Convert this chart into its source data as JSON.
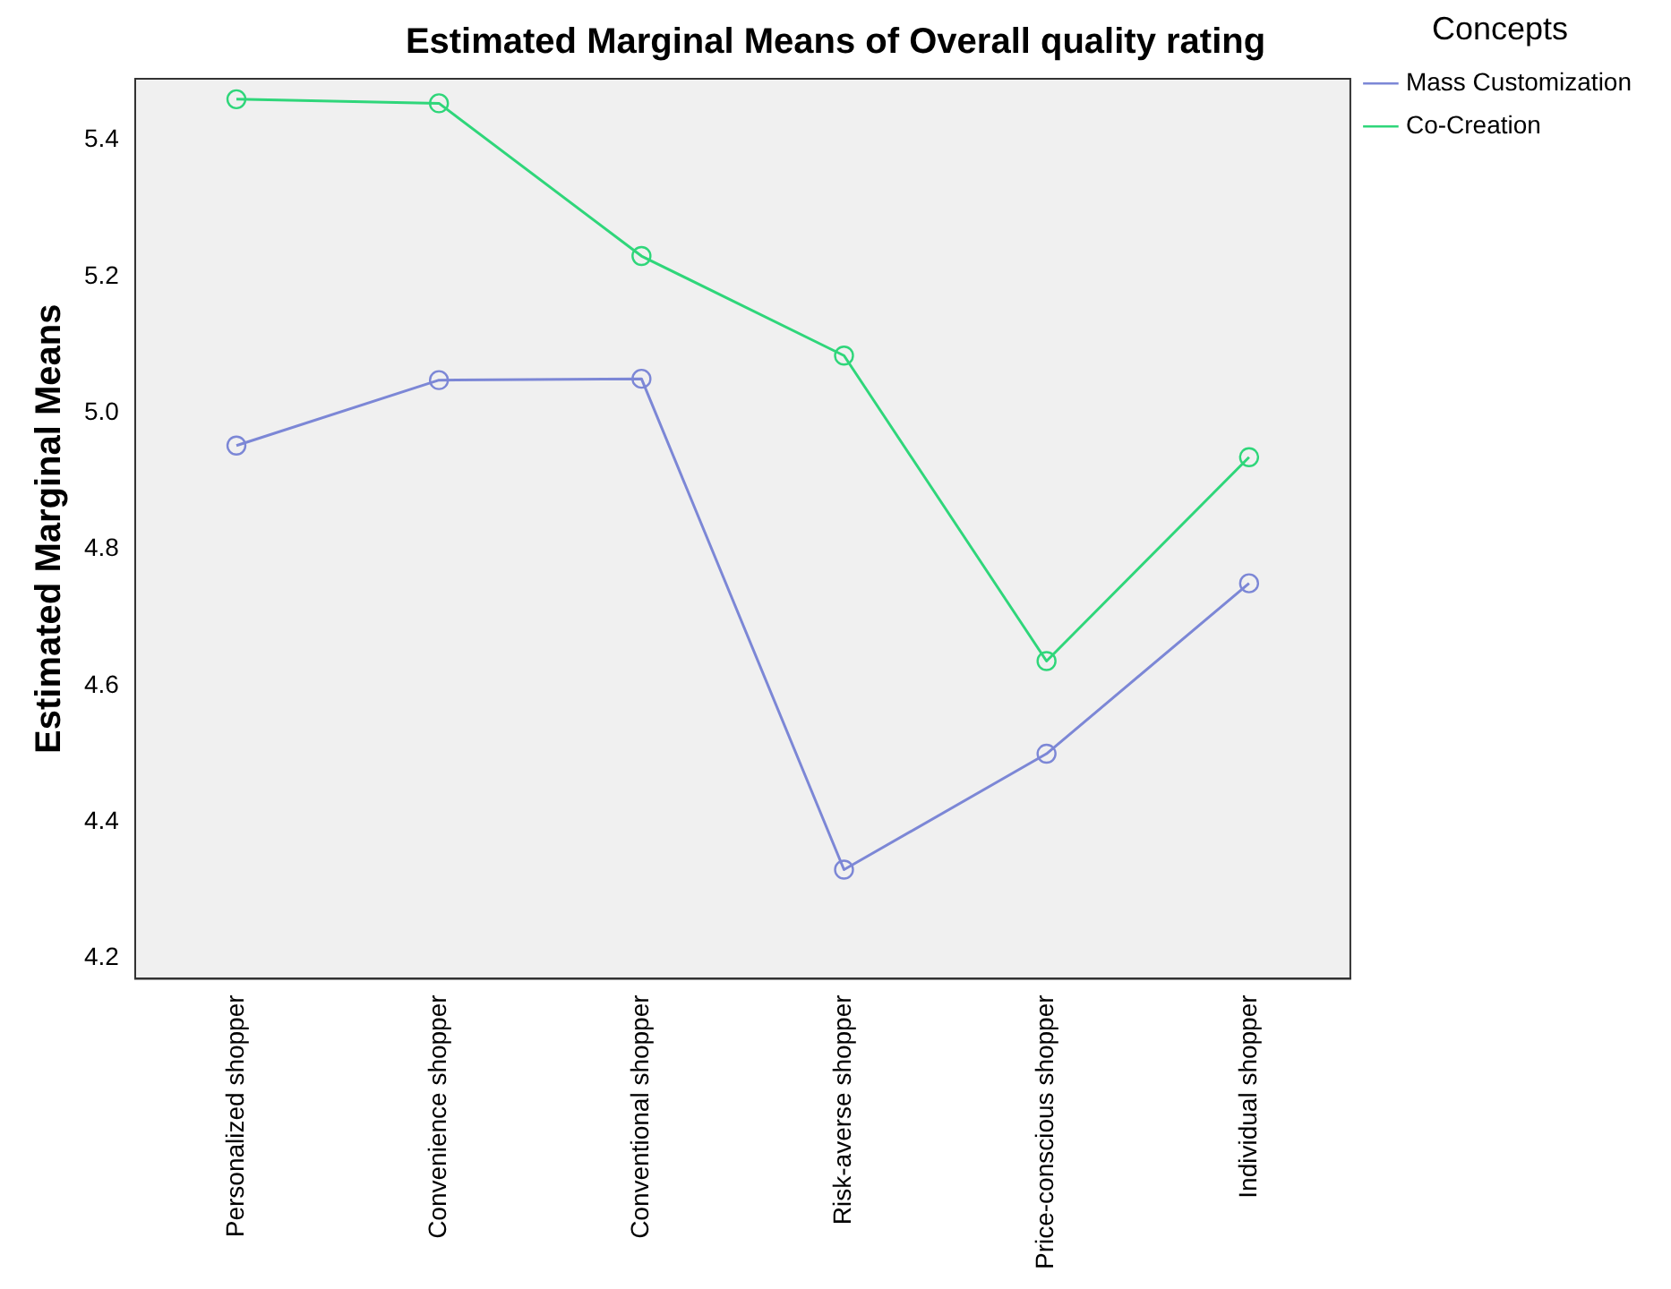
{
  "chart_data": {
    "type": "line",
    "title": "Estimated Marginal Means of Overall quality rating",
    "ylabel": "Estimated Marginal Means",
    "legend_title": "Concepts",
    "categories": [
      "Personalized shopper",
      "Convenience shopper",
      "Conventional shopper",
      "Risk-averse shopper",
      "Price-conscious shopper",
      "Individual shopper"
    ],
    "series": [
      {
        "name": "Mass Customization",
        "color": "#7c87d6",
        "values": [
          4.952,
          5.048,
          5.05,
          4.33,
          4.5,
          4.75
        ]
      },
      {
        "name": "Co-Creation",
        "color": "#2fd67a",
        "values": [
          5.46,
          5.454,
          5.23,
          5.084,
          4.636,
          4.935
        ]
      }
    ],
    "ylim": [
      4.17,
      5.49
    ],
    "yticks": [
      4.2,
      4.4,
      4.6,
      4.8,
      {
        "value": 5.0,
        "label": "5.0"
      },
      5.2,
      5.4
    ],
    "grid": false,
    "legend": "top right",
    "marker": "circle",
    "line_style": "solid"
  }
}
